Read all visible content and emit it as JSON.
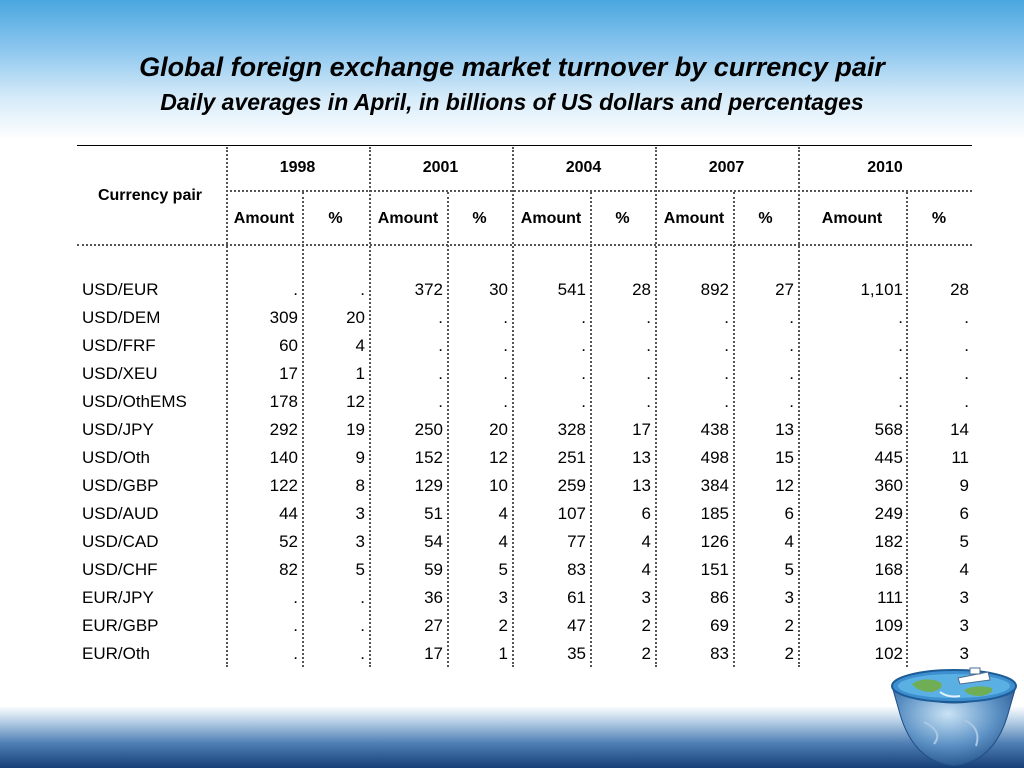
{
  "title": "Global foreign exchange market turnover by currency pair",
  "subtitle": "Daily averages in April, in billions of US dollars and percentages",
  "chart_data": {
    "type": "table",
    "title": "Global foreign exchange market turnover by currency pair",
    "subtitle": "Daily averages in April, in billions of US dollars and percentages",
    "row_header": "Currency pair",
    "years": [
      "1998",
      "2001",
      "2004",
      "2007",
      "2010"
    ],
    "subcolumns": [
      "Amount",
      "%"
    ],
    "rows": [
      {
        "pair": "USD/EUR",
        "values": [
          ".",
          ".",
          "372",
          "30",
          "541",
          "28",
          "892",
          "27",
          "1,101",
          "28"
        ]
      },
      {
        "pair": "USD/DEM",
        "values": [
          "309",
          "20",
          ".",
          ".",
          ".",
          ".",
          ".",
          ".",
          ".",
          "."
        ]
      },
      {
        "pair": "USD/FRF",
        "values": [
          "60",
          "4",
          ".",
          ".",
          ".",
          ".",
          ".",
          ".",
          ".",
          "."
        ]
      },
      {
        "pair": "USD/XEU",
        "values": [
          "17",
          "1",
          ".",
          ".",
          ".",
          ".",
          ".",
          ".",
          ".",
          "."
        ]
      },
      {
        "pair": "USD/OthEMS",
        "values": [
          "178",
          "12",
          ".",
          ".",
          ".",
          ".",
          ".",
          ".",
          ".",
          "."
        ]
      },
      {
        "pair": "USD/JPY",
        "values": [
          "292",
          "19",
          "250",
          "20",
          "328",
          "17",
          "438",
          "13",
          "568",
          "14"
        ]
      },
      {
        "pair": "USD/Oth",
        "values": [
          "140",
          "9",
          "152",
          "12",
          "251",
          "13",
          "498",
          "15",
          "445",
          "11"
        ]
      },
      {
        "pair": "USD/GBP",
        "values": [
          "122",
          "8",
          "129",
          "10",
          "259",
          "13",
          "384",
          "12",
          "360",
          "9"
        ]
      },
      {
        "pair": "USD/AUD",
        "values": [
          "44",
          "3",
          "51",
          "4",
          "107",
          "6",
          "185",
          "6",
          "249",
          "6"
        ]
      },
      {
        "pair": "USD/CAD",
        "values": [
          "52",
          "3",
          "54",
          "4",
          "77",
          "4",
          "126",
          "4",
          "182",
          "5"
        ]
      },
      {
        "pair": "USD/CHF",
        "values": [
          "82",
          "5",
          "59",
          "5",
          "83",
          "4",
          "151",
          "5",
          "168",
          "4"
        ]
      },
      {
        "pair": "EUR/JPY",
        "values": [
          ".",
          ".",
          "36",
          "3",
          "61",
          "3",
          "86",
          "3",
          "111",
          "3"
        ]
      },
      {
        "pair": "EUR/GBP",
        "values": [
          ".",
          ".",
          "27",
          "2",
          "47",
          "2",
          "69",
          "2",
          "109",
          "3"
        ]
      },
      {
        "pair": "EUR/Oth",
        "values": [
          ".",
          ".",
          "17",
          "1",
          "35",
          "2",
          "83",
          "2",
          "102",
          "3"
        ]
      }
    ]
  },
  "colors": {
    "top_gradient": "#4aa7e0",
    "bottom_gradient": "#163f78",
    "text": "#000000"
  },
  "icons": [
    "globe-ship-icon"
  ]
}
